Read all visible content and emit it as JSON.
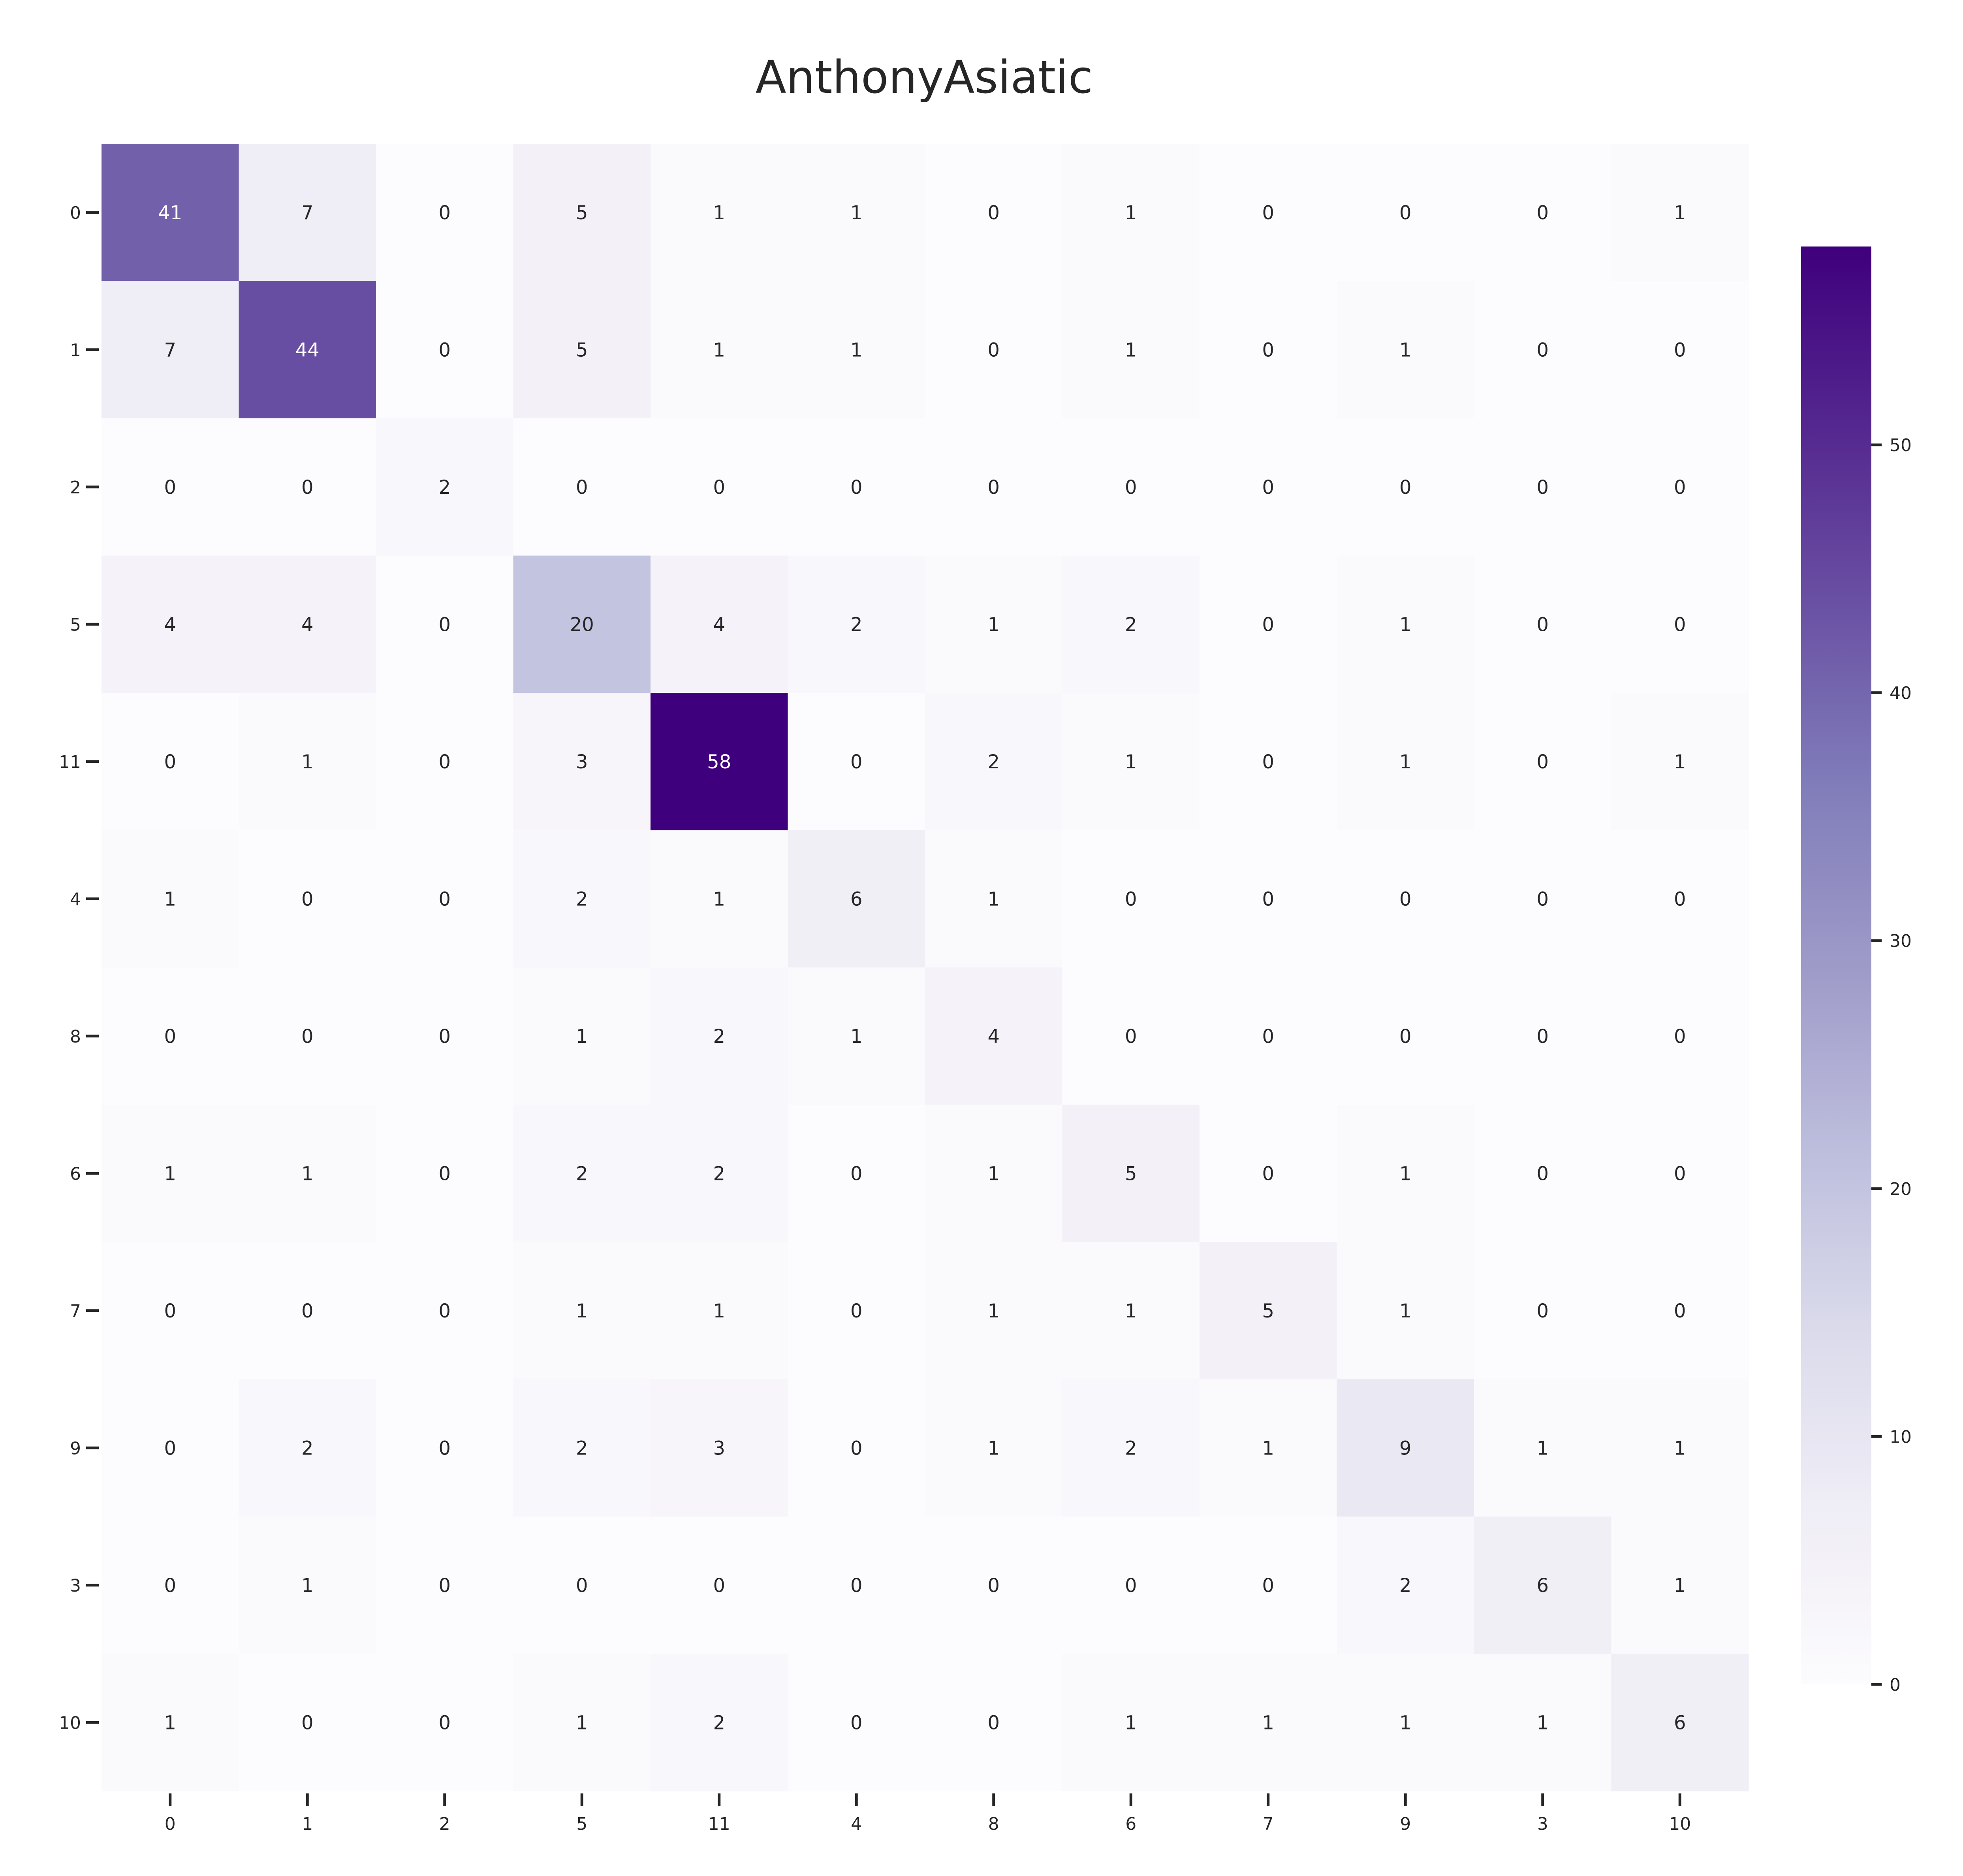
{
  "chart_data": {
    "type": "heatmap",
    "title": "AnthonyAsiatic",
    "row_labels": [
      "0",
      "1",
      "2",
      "5",
      "11",
      "4",
      "8",
      "6",
      "7",
      "9",
      "3",
      "10"
    ],
    "col_labels": [
      "0",
      "1",
      "2",
      "5",
      "11",
      "4",
      "8",
      "6",
      "7",
      "9",
      "3",
      "10"
    ],
    "values": [
      [
        41,
        7,
        0,
        5,
        1,
        1,
        0,
        1,
        0,
        0,
        0,
        1
      ],
      [
        7,
        44,
        0,
        5,
        1,
        1,
        0,
        1,
        0,
        1,
        0,
        0
      ],
      [
        0,
        0,
        2,
        0,
        0,
        0,
        0,
        0,
        0,
        0,
        0,
        0
      ],
      [
        4,
        4,
        0,
        20,
        4,
        2,
        1,
        2,
        0,
        1,
        0,
        0
      ],
      [
        0,
        1,
        0,
        3,
        58,
        0,
        2,
        1,
        0,
        1,
        0,
        1
      ],
      [
        1,
        0,
        0,
        2,
        1,
        6,
        1,
        0,
        0,
        0,
        0,
        0
      ],
      [
        0,
        0,
        0,
        1,
        2,
        1,
        4,
        0,
        0,
        0,
        0,
        0
      ],
      [
        1,
        1,
        0,
        2,
        2,
        0,
        1,
        5,
        0,
        1,
        0,
        0
      ],
      [
        0,
        0,
        0,
        1,
        1,
        0,
        1,
        1,
        5,
        1,
        0,
        0
      ],
      [
        0,
        2,
        0,
        2,
        3,
        0,
        1,
        2,
        1,
        9,
        1,
        1
      ],
      [
        0,
        1,
        0,
        0,
        0,
        0,
        0,
        0,
        0,
        2,
        6,
        1
      ],
      [
        1,
        0,
        0,
        1,
        2,
        0,
        0,
        1,
        1,
        1,
        1,
        6
      ]
    ],
    "colorbar": {
      "range": [
        0,
        58
      ],
      "ticks": [
        0,
        10,
        20,
        30,
        40,
        50
      ],
      "colormap": "Purples",
      "colors": [
        "#fcfbfd",
        "#efedf5",
        "#dadaeb",
        "#bcbddc",
        "#9e9ac8",
        "#807dba",
        "#6a51a3",
        "#54278f",
        "#3f007d"
      ]
    },
    "xlabel": "",
    "ylabel": "",
    "grid": false,
    "legend": "colorbar-right"
  }
}
